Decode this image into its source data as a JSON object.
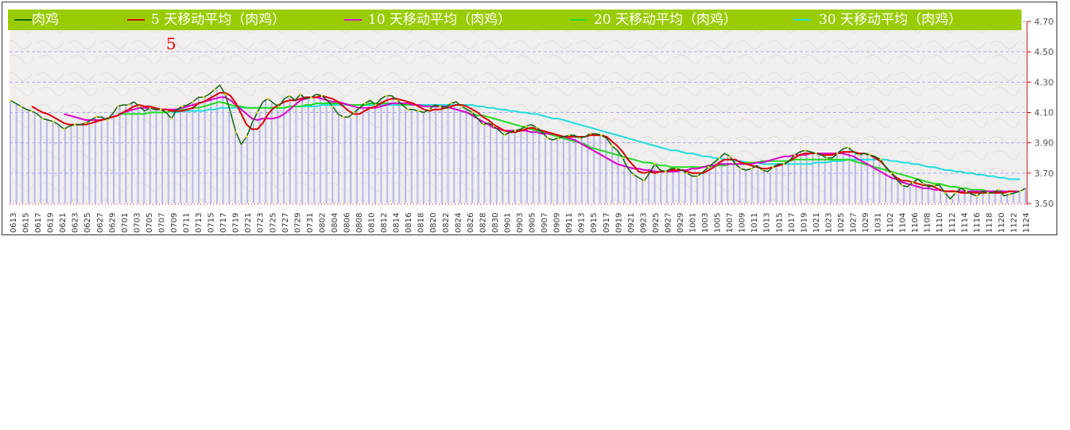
{
  "chart_data": {
    "type": "line",
    "title": "",
    "xlabel": "",
    "ylabel": "",
    "ylim": [
      3.5,
      4.7
    ],
    "y_ticks": [
      "4.70",
      "4.50",
      "4.30",
      "4.10",
      "3.90",
      "3.70",
      "3.50"
    ],
    "x_tick_labels": [
      "0613",
      "0615",
      "0617",
      "0619",
      "0621",
      "0623",
      "0625",
      "0627",
      "0629",
      "0701",
      "0703",
      "0705",
      "0707",
      "0709",
      "0711",
      "0713",
      "0715",
      "0717",
      "0719",
      "0721",
      "0723",
      "0725",
      "0727",
      "0729",
      "0731",
      "0802",
      "0804",
      "0806",
      "0808",
      "0810",
      "0812",
      "0814",
      "0816",
      "0818",
      "0820",
      "0822",
      "0824",
      "0826",
      "0828",
      "0830",
      "0901",
      "0903",
      "0905",
      "0907",
      "0909",
      "0911",
      "0913",
      "0915",
      "0917",
      "0919",
      "0921",
      "0923",
      "0925",
      "0927",
      "0929",
      "1001",
      "1003",
      "1005",
      "1007",
      "1009",
      "1011",
      "1013",
      "1015",
      "1017",
      "1019",
      "1021",
      "1023",
      "1025",
      "1027",
      "1029",
      "1031",
      "1102",
      "1104",
      "1106",
      "1108",
      "1110",
      "1112",
      "1114",
      "1116",
      "1118",
      "1120",
      "1122",
      "1124"
    ],
    "grid": true,
    "legend_position": "top",
    "annotation": "5",
    "series": [
      {
        "name": "肉鸡",
        "color": "#116611",
        "values": [
          4.18,
          4.16,
          4.14,
          4.12,
          4.11,
          4.09,
          4.06,
          4.05,
          4.04,
          4.02,
          3.99,
          4.01,
          4.02,
          4.02,
          4.03,
          4.05,
          4.07,
          4.07,
          4.05,
          4.09,
          4.14,
          4.15,
          4.15,
          4.17,
          4.14,
          4.11,
          4.13,
          4.12,
          4.12,
          4.1,
          4.06,
          4.12,
          4.14,
          4.15,
          4.17,
          4.2,
          4.2,
          4.22,
          4.25,
          4.28,
          4.22,
          4.1,
          3.97,
          3.89,
          3.94,
          4.03,
          4.1,
          4.17,
          4.19,
          4.16,
          4.14,
          4.19,
          4.21,
          4.18,
          4.22,
          4.19,
          4.2,
          4.22,
          4.21,
          4.18,
          4.14,
          4.09,
          4.07,
          4.07,
          4.1,
          4.13,
          4.16,
          4.18,
          4.15,
          4.19,
          4.21,
          4.21,
          4.18,
          4.15,
          4.12,
          4.12,
          4.11,
          4.1,
          4.12,
          4.15,
          4.14,
          4.13,
          4.16,
          4.17,
          4.14,
          4.12,
          4.1,
          4.06,
          4.02,
          4.03,
          4.01,
          3.98,
          3.95,
          3.97,
          3.98,
          3.99,
          4.01,
          4.02,
          4.0,
          3.97,
          3.93,
          3.92,
          3.93,
          3.94,
          3.95,
          3.95,
          3.93,
          3.94,
          3.96,
          3.96,
          3.95,
          3.93,
          3.88,
          3.85,
          3.8,
          3.73,
          3.69,
          3.67,
          3.65,
          3.7,
          3.76,
          3.72,
          3.71,
          3.73,
          3.73,
          3.72,
          3.7,
          3.68,
          3.68,
          3.71,
          3.74,
          3.77,
          3.8,
          3.83,
          3.81,
          3.76,
          3.73,
          3.72,
          3.73,
          3.75,
          3.72,
          3.71,
          3.74,
          3.76,
          3.76,
          3.78,
          3.82,
          3.84,
          3.85,
          3.84,
          3.83,
          3.82,
          3.8,
          3.8,
          3.83,
          3.86,
          3.87,
          3.84,
          3.82,
          3.83,
          3.82,
          3.81,
          3.79,
          3.74,
          3.7,
          3.66,
          3.62,
          3.61,
          3.64,
          3.66,
          3.63,
          3.61,
          3.62,
          3.62,
          3.57,
          3.53,
          3.57,
          3.6,
          3.58,
          3.56,
          3.55,
          3.58,
          3.57,
          3.57,
          3.59,
          3.55,
          3.56,
          3.57,
          3.58,
          3.6
        ]
      },
      {
        "name": "5 天移动平均（肉鸡）",
        "color": "#dd0000",
        "values": [
          null,
          null,
          null,
          null,
          4.14,
          4.12,
          4.1,
          4.09,
          4.07,
          4.05,
          4.03,
          4.02,
          4.02,
          4.02,
          4.02,
          4.03,
          4.04,
          4.05,
          4.06,
          4.07,
          4.08,
          4.1,
          4.12,
          4.14,
          4.15,
          4.14,
          4.14,
          4.13,
          4.12,
          4.12,
          4.11,
          4.11,
          4.11,
          4.12,
          4.13,
          4.16,
          4.17,
          4.19,
          4.21,
          4.23,
          4.23,
          4.21,
          4.16,
          4.09,
          4.02,
          3.99,
          3.99,
          4.03,
          4.09,
          4.13,
          4.15,
          4.17,
          4.18,
          4.18,
          4.19,
          4.2,
          4.2,
          4.2,
          4.21,
          4.2,
          4.19,
          4.17,
          4.14,
          4.11,
          4.09,
          4.09,
          4.11,
          4.13,
          4.14,
          4.16,
          4.18,
          4.19,
          4.19,
          4.18,
          4.17,
          4.16,
          4.14,
          4.12,
          4.11,
          4.12,
          4.12,
          4.13,
          4.14,
          4.15,
          4.15,
          4.14,
          4.12,
          4.1,
          4.07,
          4.05,
          4.02,
          4.0,
          3.98,
          3.97,
          3.97,
          3.98,
          3.99,
          4.0,
          3.99,
          3.98,
          3.97,
          3.96,
          3.95,
          3.94,
          3.94,
          3.94,
          3.94,
          3.94,
          3.95,
          3.95,
          3.95,
          3.94,
          3.91,
          3.88,
          3.84,
          3.79,
          3.75,
          3.71,
          3.7,
          3.71,
          3.7,
          3.71,
          3.71,
          3.72,
          3.72,
          3.72,
          3.71,
          3.7,
          3.7,
          3.7,
          3.72,
          3.74,
          3.77,
          3.79,
          3.79,
          3.79,
          3.77,
          3.76,
          3.75,
          3.74,
          3.73,
          3.73,
          3.74,
          3.75,
          3.76,
          3.78,
          3.8,
          3.82,
          3.83,
          3.83,
          3.83,
          3.82,
          3.82,
          3.82,
          3.83,
          3.84,
          3.84,
          3.84,
          3.83,
          3.83,
          3.82,
          3.8,
          3.78,
          3.74,
          3.7,
          3.67,
          3.65,
          3.65,
          3.64,
          3.63,
          3.62,
          3.62,
          3.61,
          3.59,
          3.58,
          3.58,
          3.58,
          3.57,
          3.57,
          3.57,
          3.57,
          3.57,
          3.57,
          3.57,
          3.57,
          3.57,
          3.58,
          3.58
        ]
      },
      {
        "name": "10 天移动平均（肉鸡）",
        "color": "#dd00cc",
        "values": [
          null,
          null,
          null,
          null,
          null,
          null,
          null,
          null,
          null,
          null,
          4.09,
          4.08,
          4.07,
          4.06,
          4.05,
          4.05,
          4.05,
          4.05,
          4.06,
          4.07,
          4.08,
          4.1,
          4.11,
          4.12,
          4.13,
          4.13,
          4.13,
          4.12,
          4.12,
          4.12,
          4.12,
          4.12,
          4.13,
          4.14,
          4.15,
          4.16,
          4.17,
          4.18,
          4.19,
          4.2,
          4.2,
          4.18,
          4.15,
          4.12,
          4.09,
          4.06,
          4.05,
          4.06,
          4.06,
          4.06,
          4.07,
          4.09,
          4.12,
          4.15,
          4.18,
          4.19,
          4.2,
          4.2,
          4.19,
          4.18,
          4.17,
          4.17,
          4.16,
          4.15,
          4.14,
          4.13,
          4.13,
          4.13,
          4.13,
          4.14,
          4.15,
          4.16,
          4.16,
          4.16,
          4.16,
          4.15,
          4.15,
          4.14,
          4.14,
          4.14,
          4.14,
          4.14,
          4.13,
          4.12,
          4.11,
          4.1,
          4.08,
          4.06,
          4.04,
          4.02,
          4.0,
          3.99,
          3.98,
          3.98,
          3.98,
          3.98,
          3.98,
          3.97,
          3.97,
          3.96,
          3.96,
          3.96,
          3.95,
          3.94,
          3.93,
          3.92,
          3.9,
          3.88,
          3.86,
          3.84,
          3.82,
          3.8,
          3.78,
          3.76,
          3.75,
          3.74,
          3.73,
          3.73,
          3.72,
          3.72,
          3.71,
          3.71,
          3.71,
          3.71,
          3.71,
          3.72,
          3.72,
          3.73,
          3.73,
          3.74,
          3.75,
          3.75,
          3.76,
          3.76,
          3.76,
          3.76,
          3.76,
          3.76,
          3.76,
          3.77,
          3.77,
          3.78,
          3.79,
          3.8,
          3.81,
          3.81,
          3.82,
          3.82,
          3.82,
          3.83,
          3.83,
          3.83,
          3.83,
          3.83,
          3.83,
          3.83,
          3.82,
          3.81,
          3.79,
          3.77,
          3.75,
          3.73,
          3.71,
          3.69,
          3.67,
          3.66,
          3.64,
          3.63,
          3.62,
          3.61,
          3.6,
          3.6,
          3.59,
          3.59,
          3.58,
          3.58,
          3.58,
          3.58,
          3.58,
          3.58,
          3.58,
          3.58,
          3.58,
          3.58,
          3.58,
          3.58,
          3.58,
          3.58,
          3.58
        ]
      },
      {
        "name": "20 天移动平均（肉鸡）",
        "color": "#22dd22",
        "values": [
          null,
          null,
          null,
          null,
          null,
          null,
          null,
          null,
          null,
          null,
          null,
          null,
          null,
          null,
          null,
          null,
          null,
          null,
          null,
          null,
          4.09,
          4.09,
          4.09,
          4.09,
          4.09,
          4.09,
          4.1,
          4.1,
          4.1,
          4.1,
          4.11,
          4.11,
          4.12,
          4.12,
          4.13,
          4.13,
          4.14,
          4.15,
          4.16,
          4.17,
          4.16,
          4.15,
          4.14,
          4.14,
          4.13,
          4.13,
          4.13,
          4.13,
          4.13,
          4.13,
          4.13,
          4.13,
          4.14,
          4.14,
          4.14,
          4.15,
          4.15,
          4.16,
          4.16,
          4.16,
          4.16,
          4.16,
          4.16,
          4.15,
          4.15,
          4.15,
          4.15,
          4.16,
          4.16,
          4.16,
          4.16,
          4.16,
          4.16,
          4.15,
          4.15,
          4.15,
          4.15,
          4.14,
          4.14,
          4.14,
          4.14,
          4.13,
          4.13,
          4.12,
          4.11,
          4.1,
          4.09,
          4.08,
          4.08,
          4.07,
          4.06,
          4.05,
          4.04,
          4.03,
          4.02,
          4.01,
          4.0,
          3.99,
          3.98,
          3.97,
          3.96,
          3.95,
          3.94,
          3.93,
          3.92,
          3.91,
          3.9,
          3.89,
          3.87,
          3.86,
          3.85,
          3.84,
          3.83,
          3.82,
          3.81,
          3.8,
          3.79,
          3.78,
          3.77,
          3.77,
          3.76,
          3.75,
          3.75,
          3.74,
          3.74,
          3.74,
          3.74,
          3.74,
          3.74,
          3.74,
          3.74,
          3.75,
          3.75,
          3.75,
          3.76,
          3.76,
          3.76,
          3.77,
          3.77,
          3.77,
          3.78,
          3.78,
          3.78,
          3.78,
          3.78,
          3.78,
          3.79,
          3.79,
          3.79,
          3.79,
          3.79,
          3.79,
          3.79,
          3.79,
          3.79,
          3.79,
          3.79,
          3.78,
          3.77,
          3.76,
          3.75,
          3.74,
          3.73,
          3.72,
          3.71,
          3.7,
          3.69,
          3.68,
          3.67,
          3.66,
          3.65,
          3.64,
          3.63,
          3.63,
          3.62,
          3.61,
          3.61,
          3.6,
          3.6,
          3.59,
          3.59,
          3.59,
          3.58,
          3.58,
          3.58,
          3.58
        ]
      },
      {
        "name": "30 天移动平均（肉鸡）",
        "color": "#22dddd",
        "values": [
          null,
          null,
          null,
          null,
          null,
          null,
          null,
          null,
          null,
          null,
          null,
          null,
          null,
          null,
          null,
          null,
          null,
          null,
          null,
          null,
          null,
          null,
          null,
          null,
          null,
          null,
          null,
          null,
          null,
          null,
          4.1,
          4.1,
          4.11,
          4.11,
          4.11,
          4.11,
          4.11,
          4.12,
          4.12,
          4.13,
          4.13,
          4.13,
          4.13,
          4.13,
          4.13,
          4.13,
          4.13,
          4.13,
          4.13,
          4.13,
          4.13,
          4.13,
          4.14,
          4.14,
          4.14,
          4.14,
          4.14,
          4.14,
          4.15,
          4.15,
          4.15,
          4.15,
          4.15,
          4.15,
          4.15,
          4.15,
          4.15,
          4.15,
          4.15,
          4.15,
          4.15,
          4.15,
          4.15,
          4.15,
          4.15,
          4.15,
          4.15,
          4.15,
          4.15,
          4.15,
          4.15,
          4.15,
          4.15,
          4.15,
          4.15,
          4.15,
          4.15,
          4.14,
          4.14,
          4.13,
          4.13,
          4.12,
          4.12,
          4.11,
          4.11,
          4.1,
          4.1,
          4.09,
          4.09,
          4.08,
          4.07,
          4.06,
          4.06,
          4.05,
          4.04,
          4.03,
          4.02,
          4.01,
          4.0,
          3.99,
          3.98,
          3.97,
          3.96,
          3.95,
          3.94,
          3.93,
          3.92,
          3.91,
          3.9,
          3.89,
          3.88,
          3.87,
          3.86,
          3.85,
          3.85,
          3.84,
          3.83,
          3.83,
          3.82,
          3.81,
          3.81,
          3.8,
          3.8,
          3.79,
          3.79,
          3.78,
          3.78,
          3.77,
          3.77,
          3.77,
          3.76,
          3.76,
          3.76,
          3.76,
          3.76,
          3.76,
          3.76,
          3.76,
          3.76,
          3.76,
          3.77,
          3.77,
          3.77,
          3.78,
          3.78,
          3.78,
          3.79,
          3.79,
          3.79,
          3.79,
          3.79,
          3.79,
          3.79,
          3.79,
          3.78,
          3.78,
          3.77,
          3.77,
          3.76,
          3.76,
          3.75,
          3.74,
          3.74,
          3.73,
          3.72,
          3.72,
          3.71,
          3.71,
          3.7,
          3.7,
          3.69,
          3.69,
          3.68,
          3.68,
          3.67,
          3.67,
          3.66,
          3.66,
          3.66
        ]
      }
    ]
  }
}
